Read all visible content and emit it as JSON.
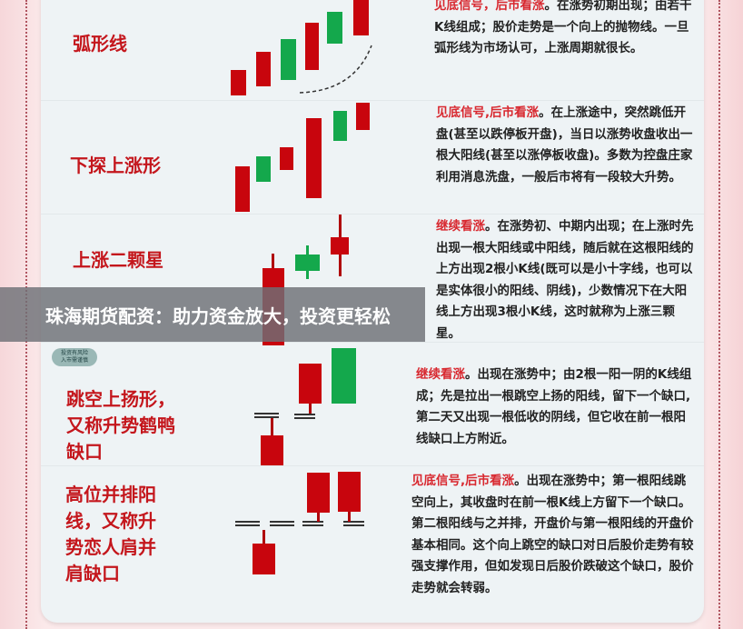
{
  "banner": {
    "text": "珠海期货配资：助力资金放大，投资更轻松"
  },
  "badge": {
    "line1": "投资有风险",
    "line2": "入市需谨慎"
  },
  "colors": {
    "bullish": "#c8050d",
    "bearish": "#14a84c",
    "highlight": "#d8282f"
  },
  "patterns": [
    {
      "title": "弧形线",
      "highlight": "见底信号，后市看涨",
      "text": "。在涨势初期出现；由若干K线组成；股价走势是一个向上的抛物线。一旦弧形线为市场认可，上涨周期就很长。"
    },
    {
      "title": "下探上涨形",
      "highlight": "见底信号,后市看涨",
      "text": "。在上涨途中，突然跳低开盘(甚至以跌停板开盘)，当日以涨势收盘收出一根大阳线(甚至以涨停板收盘)。多数为控盘庄家利用消息洗盘，一般后市将有一段较大升势。"
    },
    {
      "title": "上涨二颗星",
      "highlight": "继续看涨",
      "text": "。在涨势初、中期内出现；在上涨时先出现一根大阳线或中阳线，随后就在这根阳线的上方出现2根小K线(既可以是小十字线，也可以是实体很小的阳线、阴线)，少数情况下在大阳线上方出现3根小K线，这时就称为上涨三颗星。"
    },
    {
      "title": "跳空上扬形，又称升势鹤鸭缺口",
      "highlight": "继续看涨",
      "text": "。出现在涨势中；由2根一阳一阴的K线组成；先是拉出一根跳空上扬的阳线，留下一个缺口,第二天又出现一根低收的阴线，但它收在前一根阳线缺口上方附近。"
    },
    {
      "title": "高位并排阳线，又称升势恋人肩并肩缺口",
      "highlight": "见底信号,后市看涨",
      "text": "。出现在涨势中；第一根阳线跳空向上，其收盘时在前一根K线上方留下一个缺口。第二根阳线与之并排，开盘价与第一根阳线的开盘价基本相同。这个向上跳空的缺口对日后股价走势有较强支撑作用，但如发现日后股价跌破这个缺口，股价走势就会转弱。"
    }
  ]
}
